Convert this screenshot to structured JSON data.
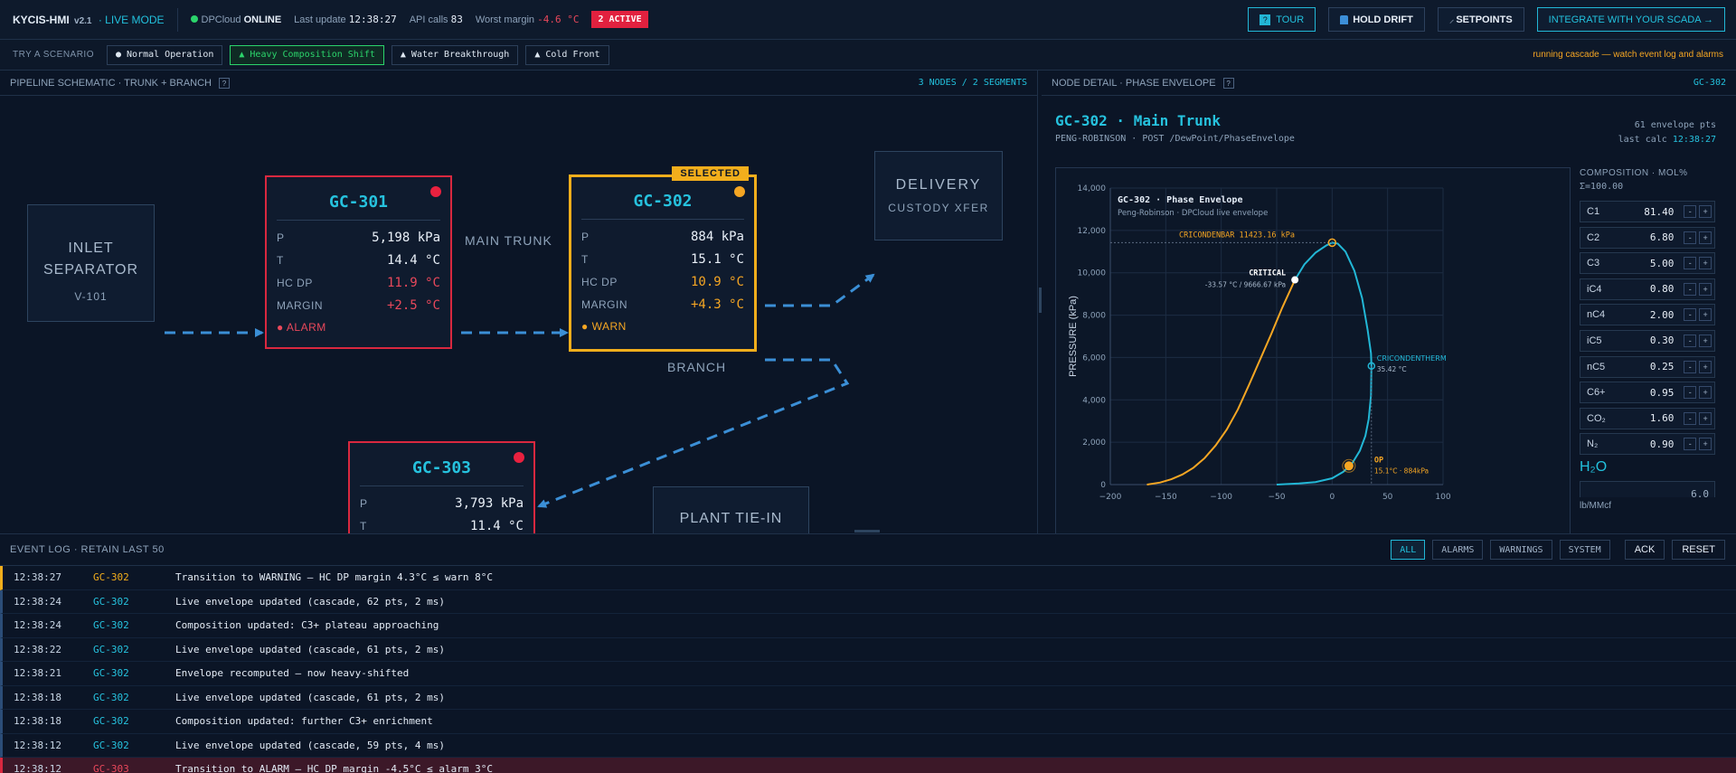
{
  "topbar": {
    "brand": "KYCIS-HMI",
    "version": "v2.1",
    "mode": "· LIVE MODE",
    "cloud_label": "DPCloud",
    "cloud_state": "ONLINE",
    "last_update_label": "Last update",
    "last_update_value": "12:38:27",
    "api_calls_label": "API calls",
    "api_calls_value": "83",
    "worst_margin_label": "Worst margin",
    "worst_margin_value": "-4.6 °C",
    "active_badge": "2 ACTIVE",
    "buttons": {
      "tour": "TOUR",
      "hold_drift": "HOLD DRIFT",
      "setpoints": "SETPOINTS",
      "integrate": "INTEGRATE WITH YOUR SCADA →"
    }
  },
  "scenarios": {
    "label": "TRY A SCENARIO",
    "items": [
      {
        "label": "● Normal Operation",
        "active": false
      },
      {
        "label": "▲ Heavy Composition Shift",
        "active": true
      },
      {
        "label": "▲ Water Breakthrough",
        "active": false
      },
      {
        "label": "▲ Cold Front",
        "active": false
      }
    ],
    "status": "running cascade — watch event log and alarms"
  },
  "schematic": {
    "title": "PIPELINE SCHEMATIC · TRUNK + BRANCH",
    "summary": "3 NODES / 2 SEGMENTS",
    "inlet": {
      "line1": "INLET",
      "line2": "SEPARATOR",
      "tag": "V-101"
    },
    "delivery": {
      "line1": "DELIVERY",
      "line2": "CUSTODY XFER"
    },
    "plant": {
      "line1": "PLANT TIE-IN"
    },
    "labels": {
      "main_trunk": "MAIN TRUNK",
      "branch": "BRANCH"
    },
    "selected_tag": "SELECTED",
    "gc301": {
      "name": "GC-301",
      "p_label": "P",
      "p": "5,198 kPa",
      "t_label": "T",
      "t": "14.4 °C",
      "dp_label": "HC DP",
      "dp": "11.9 °C",
      "margin_label": "MARGIN",
      "margin": "+2.5 °C",
      "status": "● ALARM"
    },
    "gc302": {
      "name": "GC-302",
      "p_label": "P",
      "p": "884 kPa",
      "t_label": "T",
      "t": "15.1 °C",
      "dp_label": "HC DP",
      "dp": "10.9 °C",
      "margin_label": "MARGIN",
      "margin": "+4.3 °C",
      "status": "● WARN"
    },
    "gc303": {
      "name": "GC-303",
      "p_label": "P",
      "p": "3,793 kPa",
      "t_label": "T",
      "t": "11.4 °C"
    },
    "colors": {
      "alarm": "#d9283f",
      "warn": "#f2ae1c",
      "accent": "#26c2de"
    }
  },
  "detail": {
    "header": "NODE DETAIL · PHASE ENVELOPE",
    "header_node": "GC-302",
    "title": "GC-302 · Main Trunk",
    "subtitle": "PENG-ROBINSON · POST /DewPoint/PhaseEnvelope",
    "points_count": "61 envelope pts",
    "last_calc_label": "last calc",
    "last_calc_value": "12:38:27",
    "composition": {
      "title": "COMPOSITION · MOL%",
      "sum": "Σ=100.00",
      "items": [
        {
          "name": "C1",
          "value": "81.40"
        },
        {
          "name": "C2",
          "value": "6.80"
        },
        {
          "name": "C3",
          "value": "5.00"
        },
        {
          "name": "iC4",
          "value": "0.80"
        },
        {
          "name": "nC4",
          "value": "2.00"
        },
        {
          "name": "iC5",
          "value": "0.30"
        },
        {
          "name": "nC5",
          "value": "0.25"
        },
        {
          "name": "C6+",
          "value": "0.95"
        },
        {
          "name": "CO₂",
          "value": "1.60"
        },
        {
          "name": "N₂",
          "value": "0.90"
        }
      ],
      "minus": "-",
      "plus": "+",
      "h2o_label": "H₂O",
      "h2o_value": "6.0",
      "h2o_unit": "lb/MMcf"
    }
  },
  "chart_data": {
    "type": "line",
    "title": "GC-302 · Phase Envelope",
    "subtitle": "Peng-Robinson · DPCloud live envelope",
    "xlabel": "",
    "ylabel": "PRESSURE (kPa)",
    "xlim": [
      -200,
      100
    ],
    "ylim": [
      0,
      14000
    ],
    "x_ticks": [
      -200,
      -150,
      -100,
      -50,
      0,
      50,
      100
    ],
    "x_tick_labels": [
      "−200",
      "−150",
      "−100",
      "−50",
      "0",
      "50",
      "100"
    ],
    "y_ticks": [
      0,
      2000,
      4000,
      6000,
      8000,
      10000,
      12000,
      14000
    ],
    "y_tick_labels": [
      "0",
      "2,000",
      "4,000",
      "6,000",
      "8,000",
      "10,000",
      "12,000",
      "14,000"
    ],
    "grid": true,
    "series": [
      {
        "name": "",
        "color": "#f5a623",
        "x": [
          -167,
          -155,
          -145,
          -135,
          -125,
          -115,
          -105,
          -95,
          -85,
          -75,
          -65,
          -55,
          -45,
          -33.57
        ],
        "y": [
          0,
          100,
          250,
          480,
          800,
          1250,
          1850,
          2600,
          3550,
          4700,
          5900,
          7100,
          8350,
          9666.67
        ]
      },
      {
        "name": "",
        "color": "#22b7d6",
        "x": [
          -33.57,
          -25,
          -15,
          -5,
          0,
          5,
          12,
          20,
          27,
          32,
          35,
          35.42,
          35,
          33,
          30,
          25,
          18,
          10,
          0,
          -15,
          -30,
          -50
        ],
        "y": [
          9666.67,
          10400,
          10950,
          11300,
          11423.16,
          11380,
          11000,
          10100,
          8800,
          7300,
          6200,
          5600,
          4200,
          3100,
          2300,
          1600,
          1000,
          600,
          300,
          120,
          50,
          0
        ]
      }
    ],
    "annotations": {
      "cricondenbar": {
        "label": "CRICONDENBAR 11423.16 kPa",
        "x": 0,
        "y": 11423.16
      },
      "critical": {
        "label": "CRITICAL",
        "sub": "-33.57 °C / 9666.67 kPa",
        "x": -33.57,
        "y": 9666.67
      },
      "cricondentherm": {
        "label": "CRICONDENTHERM",
        "sub": "35.42 °C",
        "x": 35.42,
        "y": 5600
      },
      "op": {
        "label": "OP",
        "sub": "15.1°C · 884kPa",
        "x": 15.1,
        "y": 884
      }
    }
  },
  "eventlog": {
    "title": "EVENT LOG · RETAIN LAST 50",
    "filters": [
      "ALL",
      "ALARMS",
      "WARNINGS",
      "SYSTEM"
    ],
    "ack": "ACK",
    "reset": "RESET",
    "events": [
      {
        "time": "12:38:27",
        "node": "GC-302",
        "msg": "Transition to WARNING — HC DP margin 4.3°C ≤ warn 8°C",
        "level": "warn"
      },
      {
        "time": "12:38:24",
        "node": "GC-302",
        "msg": "Live envelope updated (cascade, 62 pts, 2 ms)",
        "level": "info"
      },
      {
        "time": "12:38:24",
        "node": "GC-302",
        "msg": "Composition updated: C3+ plateau approaching",
        "level": "info"
      },
      {
        "time": "12:38:22",
        "node": "GC-302",
        "msg": "Live envelope updated (cascade, 61 pts, 2 ms)",
        "level": "info"
      },
      {
        "time": "12:38:21",
        "node": "GC-302",
        "msg": "Envelope recomputed — now heavy-shifted",
        "level": "info"
      },
      {
        "time": "12:38:18",
        "node": "GC-302",
        "msg": "Live envelope updated (cascade, 61 pts, 2 ms)",
        "level": "info"
      },
      {
        "time": "12:38:18",
        "node": "GC-302",
        "msg": "Composition updated: further C3+ enrichment",
        "level": "info"
      },
      {
        "time": "12:38:12",
        "node": "GC-302",
        "msg": "Live envelope updated (cascade, 59 pts, 4 ms)",
        "level": "info"
      },
      {
        "time": "12:38:12",
        "node": "GC-303",
        "msg": "Transition to ALARM — HC DP margin -4.5°C ≤ alarm 3°C",
        "level": "alarm"
      }
    ]
  }
}
